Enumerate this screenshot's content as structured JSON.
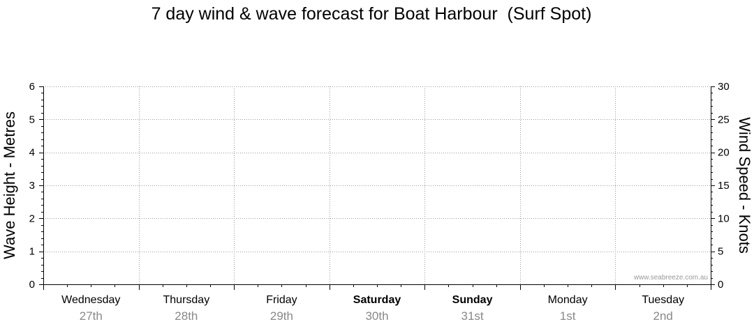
{
  "chart_data": {
    "type": "line",
    "title": "7 day wind & wave forecast for Boat Harbour  (Surf Spot)",
    "ylabel_left": "Wave Height - Metres",
    "ylabel_right": "Wind Speed - Knots",
    "ylim_left": [
      0,
      6
    ],
    "ylim_right": [
      0,
      30
    ],
    "yticks_left": [
      "0",
      "1",
      "2",
      "3",
      "4",
      "5",
      "6"
    ],
    "yticks_right": [
      "0",
      "5",
      "10",
      "15",
      "20",
      "25",
      "30"
    ],
    "grid": true,
    "days": [
      {
        "name": "Wednesday",
        "date": "27th",
        "bold": false
      },
      {
        "name": "Thursday",
        "date": "28th",
        "bold": false
      },
      {
        "name": "Friday",
        "date": "29th",
        "bold": false
      },
      {
        "name": "Saturday",
        "date": "30th",
        "bold": true
      },
      {
        "name": "Sunday",
        "date": "31st",
        "bold": true
      },
      {
        "name": "Monday",
        "date": "1st",
        "bold": false
      },
      {
        "name": "Tuesday",
        "date": "2nd",
        "bold": false
      }
    ],
    "series": [],
    "watermark": "www.seabreeze.com.au"
  }
}
